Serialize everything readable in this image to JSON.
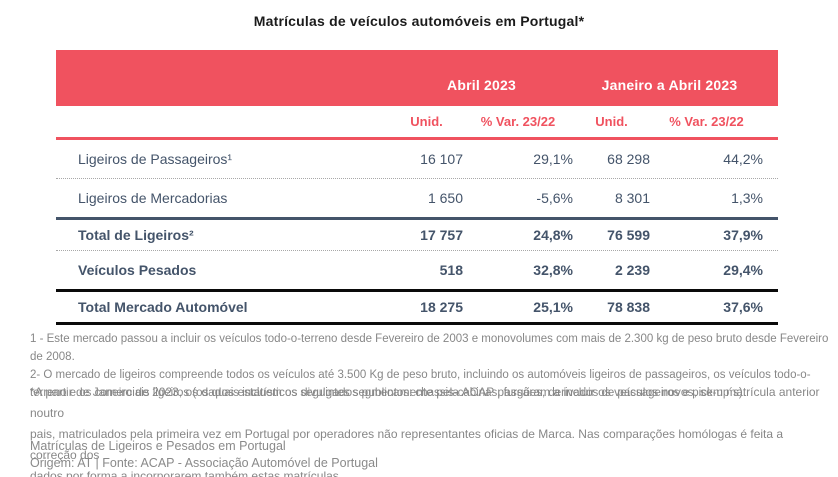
{
  "title": "Matrículas de veículos automóveis em Portugal*",
  "colors": {
    "accent_red": "#F0525F",
    "table_text": "#44546A",
    "note_gray": "#878787",
    "heavy_rule_black": "#0a0a0a"
  },
  "table": {
    "period_headers": {
      "april": "Abril 2023",
      "jan_april": "Janeiro a Abril 2023"
    },
    "column_headers": [
      "Unid.",
      "% Var. 23/22",
      "Unid.",
      "% Var. 23/22"
    ],
    "rows": [
      {
        "label": "Ligeiros de Passageiros¹",
        "values": [
          "16 107",
          "29,1%",
          "68 298",
          "44,2%"
        ]
      },
      {
        "label": "Ligeiros de Mercadorias",
        "values": [
          "1 650",
          "-5,6%",
          "8 301",
          "1,3%"
        ]
      },
      {
        "label": "Total de Ligeiros²",
        "values": [
          "17 757",
          "24,8%",
          "76 599",
          "37,9%"
        ]
      },
      {
        "label": "Veículos Pesados",
        "values": [
          "518",
          "32,8%",
          "2 239",
          "29,4%"
        ]
      },
      {
        "label": "Total Mercado Automóvel",
        "values": [
          "18 275",
          "25,1%",
          "78 838",
          "37,6%"
        ]
      }
    ]
  },
  "chart_data": {
    "type": "table",
    "title": "Matrículas de veículos automóveis em Portugal",
    "columns": [
      "Abril 2023 Unid.",
      "Abril 2023 % Var. 23/22",
      "Janeiro a Abril 2023 Unid.",
      "Janeiro a Abril 2023 % Var. 23/22"
    ],
    "rows": [
      {
        "category": "Ligeiros de Passageiros",
        "abril_unid": 16107,
        "abril_var_pct": 29.1,
        "jan_abril_unid": 68298,
        "jan_abril_var_pct": 44.2
      },
      {
        "category": "Ligeiros de Mercadorias",
        "abril_unid": 1650,
        "abril_var_pct": -5.6,
        "jan_abril_unid": 8301,
        "jan_abril_var_pct": 1.3
      },
      {
        "category": "Total de Ligeiros",
        "abril_unid": 17757,
        "abril_var_pct": 24.8,
        "jan_abril_unid": 76599,
        "jan_abril_var_pct": 37.9
      },
      {
        "category": "Veículos Pesados",
        "abril_unid": 518,
        "abril_var_pct": 32.8,
        "jan_abril_unid": 2239,
        "jan_abril_var_pct": 29.4
      },
      {
        "category": "Total Mercado Automóvel",
        "abril_unid": 18275,
        "abril_var_pct": 25.1,
        "jan_abril_unid": 78838,
        "jan_abril_var_pct": 37.6
      }
    ]
  },
  "footnotes": {
    "lines": [
      "1 - Este mercado passou a incluir os veículos todo-o-terreno desde Fevereiro de 2003 e monovolumes com mais de 2.300 kg de peso bruto desde Fevereiro de 2008.",
      "2- O mercado de ligeiros compreende todos os veículos até 3.500 Kg de peso bruto, incluindo os automóveis ligeiros de passageiros, os veículos todo-o-",
      "terreno e os comerciais ligeiros (os quais incluem os seguintes segmentos: chassis-cabinas, furgões, derivados de passageiros e pick-up´s)."
    ]
  },
  "note": {
    "lines": [
      "*A partir de Janeiro de 2023, os dados estatísticos divulgados publicamente pela ACAP passaram a incluir os veículos novos, sem matrícula anterior noutro",
      "pais, matriculados pela primeira vez em Portugal por operadores não representantes oficias de Marca. Nas comparações homólogas é feita a correção dos",
      "dados por forma a incorporarem também estas matrículas."
    ]
  },
  "source": {
    "line1": "Matrículas de Ligeiros e Pesados em Portugal",
    "line2": "Origem: AT | Fonte: ACAP - Associação Automóvel de Portugal"
  }
}
